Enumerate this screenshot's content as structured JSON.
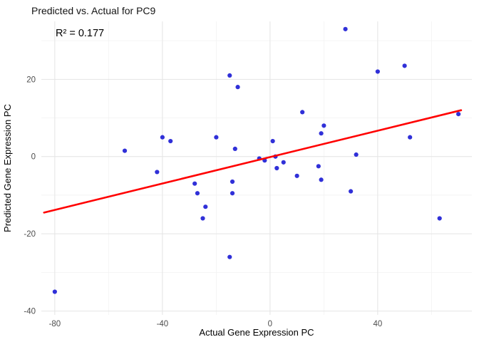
{
  "chart_data": {
    "type": "scatter",
    "title": "Predicted vs. Actual for PC9",
    "annotation": "R² = 0.177",
    "xlabel": "Actual Gene Expression PC",
    "ylabel": "Predicted Gene Expression PC",
    "xlim": [
      -85,
      75
    ],
    "ylim": [
      -41,
      35
    ],
    "x_ticks": [
      -80,
      -40,
      0,
      40
    ],
    "y_ticks": [
      -40,
      -20,
      0,
      20
    ],
    "x_minor_ticks": [
      -60,
      -20,
      20,
      60
    ],
    "y_minor_ticks": [
      -30,
      -10,
      10,
      30
    ],
    "grid": true,
    "legend": "none",
    "points": [
      [
        -80,
        -35
      ],
      [
        -54,
        1.5
      ],
      [
        -42,
        -4
      ],
      [
        -40,
        5
      ],
      [
        -37,
        4
      ],
      [
        -28,
        -7
      ],
      [
        -27,
        -9.5
      ],
      [
        -25,
        -16
      ],
      [
        -24,
        -13
      ],
      [
        -20,
        5
      ],
      [
        -15,
        21
      ],
      [
        -15,
        -26
      ],
      [
        -14,
        -6.5
      ],
      [
        -14,
        -9.5
      ],
      [
        -13,
        2
      ],
      [
        -12,
        18
      ],
      [
        -4,
        -0.5
      ],
      [
        -2,
        -1
      ],
      [
        1,
        4
      ],
      [
        2,
        0
      ],
      [
        2.5,
        -3
      ],
      [
        5,
        -1.5
      ],
      [
        10,
        -5
      ],
      [
        12,
        11.5
      ],
      [
        18,
        -2.5
      ],
      [
        19,
        -6
      ],
      [
        19,
        6
      ],
      [
        20,
        8
      ],
      [
        28,
        33
      ],
      [
        30,
        -9
      ],
      [
        32,
        0.5
      ],
      [
        40,
        22
      ],
      [
        50,
        23.5
      ],
      [
        52,
        5
      ],
      [
        63,
        -16
      ],
      [
        70,
        11
      ]
    ],
    "fit_line": {
      "x1": -84,
      "y1": -14.5,
      "x2": 71,
      "y2": 12
    },
    "colors": {
      "point": "#3030D8",
      "line": "#FF0000",
      "grid_major": "#E4E4E4",
      "grid_minor": "#F2F2F2",
      "tick_label": "#4D4D4D",
      "axis_title": "#000000",
      "title": "#141414"
    }
  }
}
